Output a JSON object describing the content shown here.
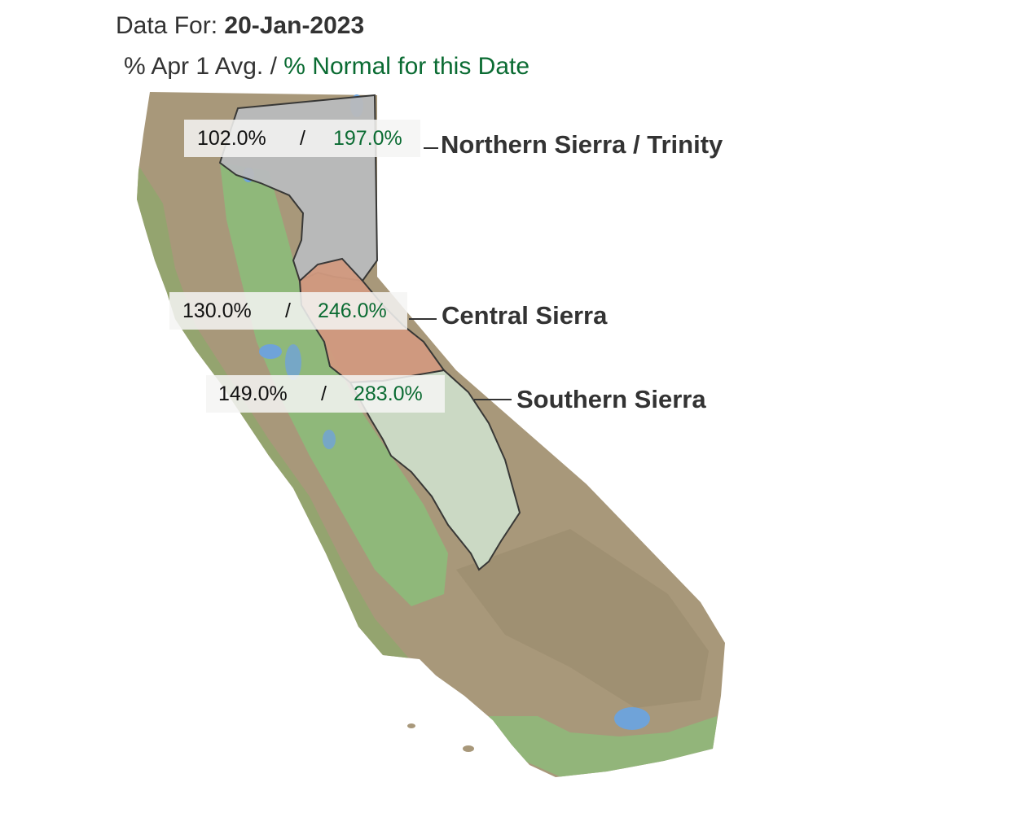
{
  "header": {
    "data_for_label": "Data For:",
    "date": "20-Jan-2023"
  },
  "legend": {
    "apr1_label": "% Apr 1 Avg.",
    "separator": "/",
    "normal_label": "% Normal for this Date",
    "normal_color": "#0a6b32"
  },
  "regions": [
    {
      "name": "Northern Sierra / Trinity",
      "pct_apr1": "102.0%",
      "separator": "/",
      "pct_normal": "197.0%"
    },
    {
      "name": "Central Sierra",
      "pct_apr1": "130.0%",
      "separator": "/",
      "pct_normal": "246.0%"
    },
    {
      "name": "Southern Sierra",
      "pct_apr1": "149.0%",
      "separator": "/",
      "pct_normal": "283.0%"
    }
  ],
  "map": {
    "land_color": "#a8987a",
    "valley_color": "#8fb87a",
    "water_color": "#6fa3d9",
    "north_region_color": "#b9bbbd",
    "central_region_color": "#d29a80",
    "south_region_color": "#cdddc8"
  }
}
